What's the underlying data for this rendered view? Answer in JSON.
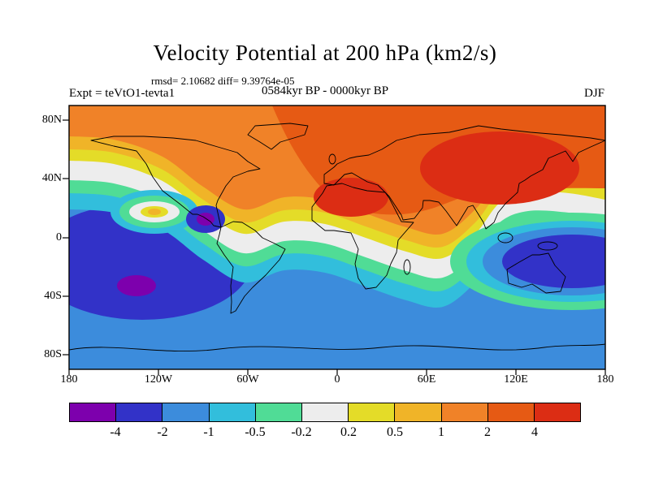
{
  "header": {
    "title": "Velocity Potential at 200 hPa (km2/s)",
    "stats_line": "rmsd= 2.10682 diff= 9.39764e-05",
    "period_line": "0584kyr BP - 0000kyr BP",
    "expt_label": "Expt = teVtO1-tevta1",
    "season_label": "DJF"
  },
  "chart_data": {
    "type": "heatmap",
    "subtype": "filled contour anomaly map on global equirectangular grid",
    "title": "Velocity Potential at 200 hPa (km2/s)",
    "variable": "Velocity Potential at 200 hPa",
    "units": "km2/s",
    "season": "DJF",
    "experiment": "teVtO1-tevta1",
    "comparison": "0584kyr BP - 0000kyr BP",
    "rmsd": 2.10682,
    "diff": 9.39764e-05,
    "lon_ticks": [
      "180",
      "120W",
      "60W",
      "0",
      "60E",
      "120E",
      "180"
    ],
    "lat_ticks": [
      "80N",
      "40N",
      "0",
      "40S",
      "80S"
    ],
    "contour_levels": [
      -4,
      -2,
      -1,
      -0.5,
      -0.2,
      0.2,
      0.5,
      1,
      2,
      4
    ],
    "palette": [
      "#7D00AD",
      "#3232C8",
      "#3C8CDC",
      "#32BEDC",
      "#50DC96",
      "#EDEDED",
      "#E4DC28",
      "#F0B428",
      "#F08228",
      "#E65A14",
      "#DC2D14"
    ],
    "legend_position": "bottom",
    "pattern_summary": "Positive (yellow to red) anomalies cover most of the Northern Hemisphere with maxima exceeding 4 over Asia and the tropical Atlantic/North Africa; negative (blue to purple) anomalies fill the subtropical Pacific (minimum below -4 with a purple core), the Southern Ocean band, and the eastern Indian Ocean / western Pacific, separated by a sinuous white near-zero band."
  },
  "colorbar": {
    "labels": [
      "-4",
      "-2",
      "-1",
      "-0.5",
      "-0.2",
      "0.2",
      "0.5",
      "1",
      "2",
      "4"
    ],
    "colors": [
      "#7D00AD",
      "#3232C8",
      "#3C8CDC",
      "#32BEDC",
      "#50DC96",
      "#EDEDED",
      "#E4DC28",
      "#F0B428",
      "#F08228",
      "#E65A14",
      "#DC2D14"
    ]
  }
}
